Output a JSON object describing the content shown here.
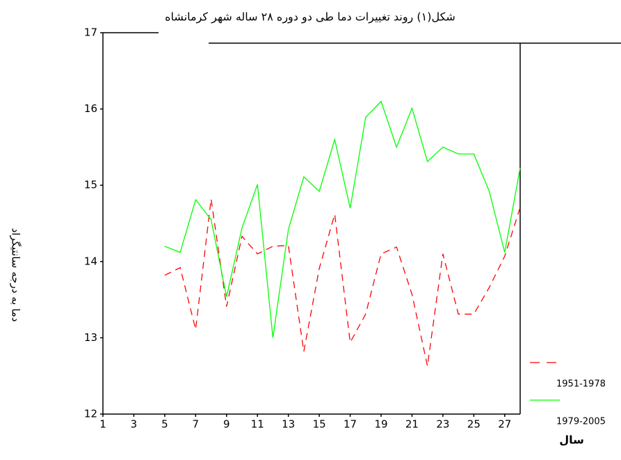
{
  "chart_data": {
    "type": "line",
    "title": "شکل(۱) روند تغییرات دما طی دو دوره ۲۸ ساله شهر کرمانشاه",
    "x_label": "سال",
    "y_label": "دما به درجه سانتیگراد",
    "x": [
      5,
      6,
      7,
      8,
      9,
      10,
      11,
      12,
      13,
      14,
      15,
      16,
      17,
      18,
      19,
      20,
      21,
      22,
      23,
      24,
      25,
      26,
      27,
      28
    ],
    "series": [
      {
        "name": "1951-1978",
        "color": "#ff0000",
        "dashed": true,
        "values": [
          13.82,
          13.92,
          13.11,
          14.82,
          13.41,
          14.33,
          14.1,
          14.2,
          14.21,
          12.82,
          13.91,
          14.62,
          12.94,
          13.31,
          14.1,
          14.19,
          13.57,
          12.63,
          14.1,
          13.31,
          13.31,
          13.66,
          14.07,
          14.71
        ]
      },
      {
        "name": "1979-2005",
        "color": "#00ff00",
        "dashed": false,
        "values": [
          14.2,
          14.12,
          14.81,
          14.55,
          13.54,
          14.44,
          15.01,
          13.0,
          14.42,
          15.11,
          14.92,
          15.6,
          14.7,
          15.89,
          16.1,
          15.5,
          16.01,
          15.31,
          15.5,
          15.41,
          15.41,
          14.92,
          14.12,
          15.23
        ]
      }
    ],
    "xlim": [
      1,
      28
    ],
    "ylim": [
      12,
      17
    ],
    "xticks": [
      1,
      3,
      5,
      7,
      9,
      11,
      13,
      15,
      17,
      19,
      21,
      23,
      25,
      27
    ],
    "yticks": [
      12,
      13,
      14,
      15,
      16,
      17
    ],
    "grid": false,
    "legend": "bottom-right"
  }
}
